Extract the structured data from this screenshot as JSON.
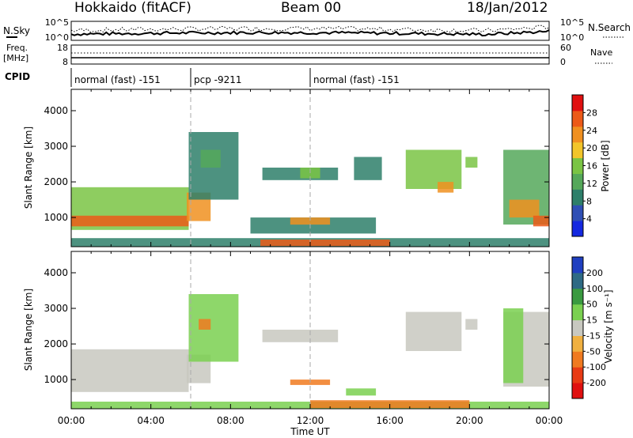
{
  "header": {
    "station": "Hokkaido (fitACF)",
    "beam": "Beam 00",
    "date": "18/Jan/2012"
  },
  "strips": {
    "nsky_label": "N.Sky",
    "nsky_ticks": [
      "10^5",
      "10^0"
    ],
    "nsearch_label": "N.Search",
    "nsearch_ticks": [
      "10^5",
      "10^0"
    ],
    "freq_label": "Freq.",
    "freq_unit": "[MHz]",
    "freq_ticks": [
      "18",
      "8"
    ],
    "nave_label": "Nave",
    "nave_ticks": [
      "60",
      "0"
    ],
    "cpid_label": "CPID",
    "cpid_segments": [
      {
        "label": "normal (fast) -151",
        "start_h": 0,
        "end_h": 6
      },
      {
        "label": "pcp -9211",
        "start_h": 6,
        "end_h": 12
      },
      {
        "label": "normal (fast) -151",
        "start_h": 12,
        "end_h": 24
      }
    ]
  },
  "chart_data": [
    {
      "type": "heatmap",
      "name": "power-panel",
      "ylabel": "Slant Range [km]",
      "xlabel": "Time UT",
      "xlim": [
        0,
        24
      ],
      "ylim": [
        180,
        4600
      ],
      "x_ticks": [
        "00:00",
        "04:00",
        "08:00",
        "12:00",
        "16:00",
        "20:00",
        "00:00"
      ],
      "y_ticks": [
        1000,
        2000,
        3000,
        4000
      ],
      "colorbar": {
        "label": "Power [dB]",
        "ticks": [
          4,
          8,
          12,
          16,
          20,
          24,
          28
        ],
        "range": [
          0,
          32
        ],
        "colors": [
          "#1428e0",
          "#2f4fb5",
          "#2e7f6a",
          "#55a85a",
          "#7ac444",
          "#f2c52a",
          "#f09020",
          "#ec5a18",
          "#e01010"
        ]
      },
      "regions": [
        {
          "x": [
            0,
            5.9
          ],
          "y": [
            650,
            1850
          ],
          "level": 16
        },
        {
          "x": [
            0,
            5.9
          ],
          "y": [
            750,
            1050
          ],
          "level": 26
        },
        {
          "x": [
            5.8,
            7.0
          ],
          "y": [
            900,
            1700
          ],
          "level": 24
        },
        {
          "x": [
            5.9,
            8.4
          ],
          "y": [
            1500,
            3400
          ],
          "level": 8
        },
        {
          "x": [
            6.5,
            7.5
          ],
          "y": [
            2400,
            2900
          ],
          "level": 14
        },
        {
          "x": [
            9.6,
            13.4
          ],
          "y": [
            2050,
            2400
          ],
          "level": 8
        },
        {
          "x": [
            11.5,
            12.5
          ],
          "y": [
            2100,
            2400
          ],
          "level": 16
        },
        {
          "x": [
            9.0,
            15.3
          ],
          "y": [
            550,
            1000
          ],
          "level": 8
        },
        {
          "x": [
            11.0,
            13.0
          ],
          "y": [
            800,
            1000
          ],
          "level": 22
        },
        {
          "x": [
            14.2,
            15.6
          ],
          "y": [
            2050,
            2700
          ],
          "level": 8
        },
        {
          "x": [
            16.8,
            19.6
          ],
          "y": [
            1800,
            2900
          ],
          "level": 16
        },
        {
          "x": [
            18.4,
            19.2
          ],
          "y": [
            1700,
            2000
          ],
          "level": 24
        },
        {
          "x": [
            19.8,
            20.4
          ],
          "y": [
            2400,
            2700
          ],
          "level": 16
        },
        {
          "x": [
            21.7,
            24.0
          ],
          "y": [
            800,
            2900
          ],
          "level": 12
        },
        {
          "x": [
            22.0,
            23.5
          ],
          "y": [
            1000,
            1500
          ],
          "level": 22
        },
        {
          "x": [
            23.2,
            24.0
          ],
          "y": [
            750,
            1050
          ],
          "level": 26
        },
        {
          "x": [
            0,
            24
          ],
          "y": [
            180,
            420
          ],
          "level": 10
        },
        {
          "x": [
            9.5,
            16.0
          ],
          "y": [
            200,
            380
          ],
          "level": 26
        }
      ]
    },
    {
      "type": "heatmap",
      "name": "velocity-panel",
      "ylabel": "Slant Range [km]",
      "xlabel": "Time UT",
      "xlim": [
        0,
        24
      ],
      "ylim": [
        180,
        4600
      ],
      "x_ticks": [
        "00:00",
        "04:00",
        "08:00",
        "12:00",
        "16:00",
        "20:00",
        "00:00"
      ],
      "y_ticks": [
        1000,
        2000,
        3000,
        4000
      ],
      "colorbar": {
        "label": "Velocity [m s⁻¹]",
        "ticks": [
          "200",
          "100",
          "50",
          "15",
          "-15",
          "-50",
          "-100",
          "-200"
        ],
        "colors": [
          "#1f3fc0",
          "#2e6a84",
          "#3a9a40",
          "#7ad050",
          "#c8c8c0",
          "#f0b040",
          "#f07a20",
          "#e83a14",
          "#e01010"
        ]
      },
      "regions": [
        {
          "x": [
            0,
            5.9
          ],
          "y": [
            650,
            1850
          ],
          "velocity": 0
        },
        {
          "x": [
            5.8,
            7.0
          ],
          "y": [
            900,
            1700
          ],
          "velocity": 0
        },
        {
          "x": [
            5.9,
            8.4
          ],
          "y": [
            1500,
            3400
          ],
          "velocity": 30
        },
        {
          "x": [
            6.4,
            7.0
          ],
          "y": [
            2400,
            2700
          ],
          "velocity": -80
        },
        {
          "x": [
            9.6,
            13.4
          ],
          "y": [
            2050,
            2400
          ],
          "velocity": 0
        },
        {
          "x": [
            11.0,
            13.0
          ],
          "y": [
            850,
            1000
          ],
          "velocity": -80
        },
        {
          "x": [
            13.8,
            15.3
          ],
          "y": [
            550,
            750
          ],
          "velocity": 40
        },
        {
          "x": [
            16.8,
            19.6
          ],
          "y": [
            1800,
            2900
          ],
          "velocity": 0
        },
        {
          "x": [
            19.8,
            20.4
          ],
          "y": [
            2400,
            2700
          ],
          "velocity": 0
        },
        {
          "x": [
            21.7,
            24.0
          ],
          "y": [
            800,
            2900
          ],
          "velocity": 0
        },
        {
          "x": [
            21.7,
            22.7
          ],
          "y": [
            900,
            3000
          ],
          "velocity": 45
        },
        {
          "x": [
            0,
            24
          ],
          "y": [
            180,
            380
          ],
          "velocity": 30
        },
        {
          "x": [
            12.0,
            20.0
          ],
          "y": [
            200,
            420
          ],
          "velocity": -70
        }
      ]
    }
  ]
}
